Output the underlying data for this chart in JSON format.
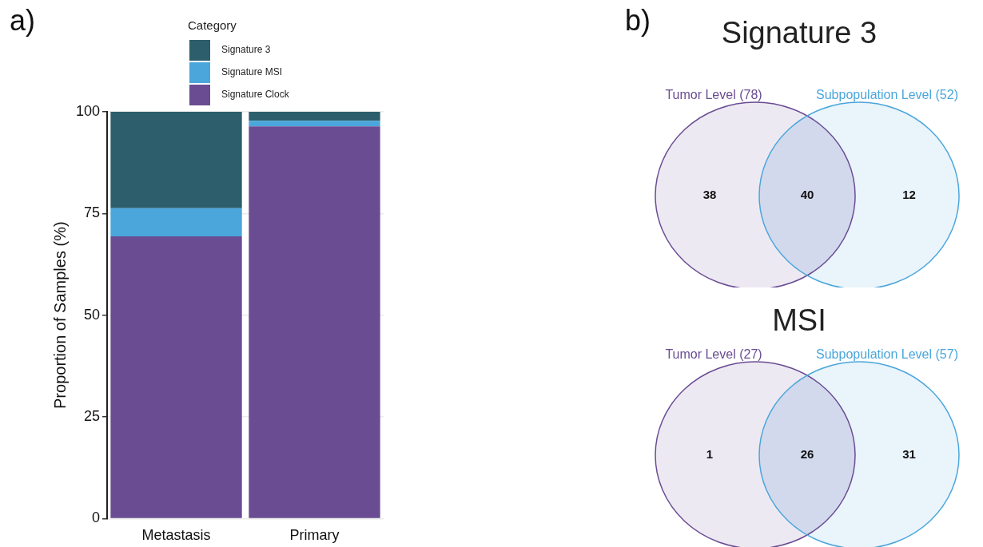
{
  "chart_data": [
    {
      "type": "bar",
      "stacked": true,
      "categories": [
        "Metastasis",
        "Primary"
      ],
      "ylabel": "Proportion of Samples (%)",
      "legend_title": "Category",
      "legend": "top",
      "grid": "y",
      "ylim": [
        0,
        100
      ],
      "yticks": [
        0,
        25,
        50,
        75,
        100
      ],
      "annotations": [
        "a)"
      ],
      "series": [
        {
          "name": "Signature Clock",
          "color": "#6a4c93",
          "values": [
            69.4,
            96.4
          ]
        },
        {
          "name": "Signature MSI",
          "color": "#4aa6db",
          "values": [
            6.9,
            1.4
          ]
        },
        {
          "name": "Signature 3",
          "color": "#2c5f6b",
          "values": [
            23.7,
            2.2
          ]
        }
      ]
    },
    {
      "type": "other",
      "title": "Signature 3",
      "categories": [
        null,
        null,
        null
      ],
      "values": [
        38,
        40,
        12
      ],
      "data_labels": true,
      "colors": [
        "#6a4c93",
        "#7d8fc8",
        "#4aa6db"
      ],
      "annotations": [
        "Tumor Level (78)",
        "Subpopulation Level (52)",
        "b)"
      ]
    },
    {
      "type": "other",
      "title": "MSI",
      "categories": [
        null,
        null,
        null
      ],
      "values": [
        1,
        26,
        31
      ],
      "data_labels": true,
      "colors": [
        "#6a4c93",
        "#7d8fc8",
        "#4aa6db"
      ],
      "annotations": [
        "Tumor Level (27)",
        "Subpopulation Level (57)"
      ]
    }
  ]
}
